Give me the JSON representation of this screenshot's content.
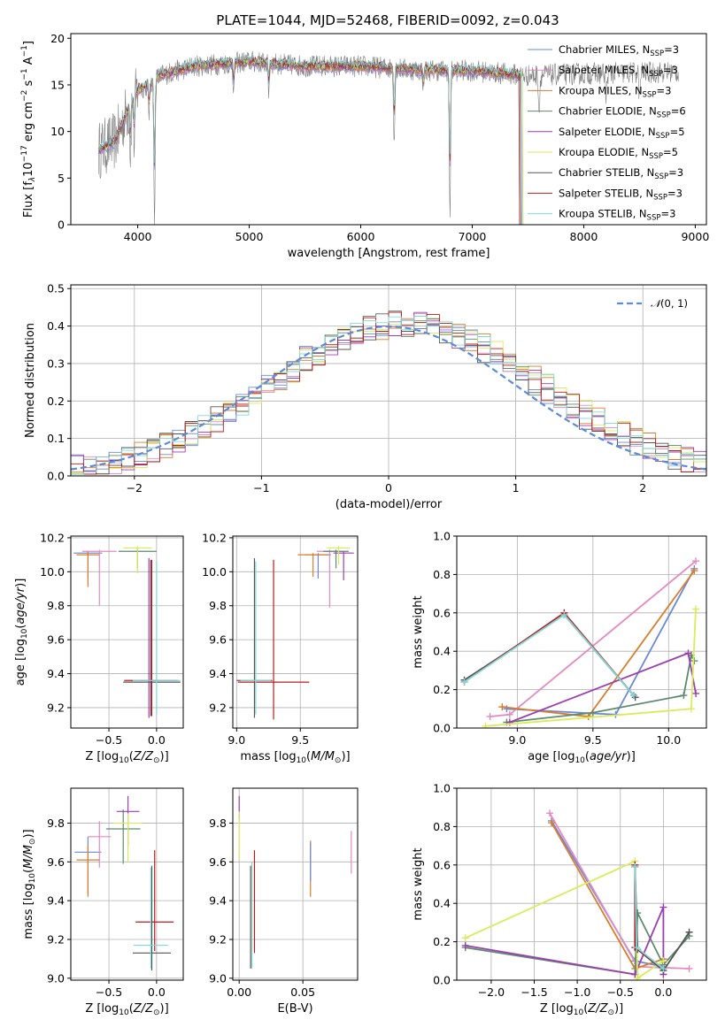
{
  "figure": {
    "title": "PLATE=1044, MJD=52468, FIBERID=0092, z=0.043"
  },
  "models": [
    {
      "label": "Chabrier MILES, N",
      "nssp": "=3",
      "color": "#6a89d8"
    },
    {
      "label": "Salpeter MILES, N",
      "nssp": "=3",
      "color": "#e58ac1"
    },
    {
      "label": "Kroupa MILES, N",
      "nssp": "=3",
      "color": "#d97e2c"
    },
    {
      "label": "Chabrier ELODIE, N",
      "nssp": "=6",
      "color": "#5e8a6e"
    },
    {
      "label": "Salpeter ELODIE, N",
      "nssp": "=5",
      "color": "#9b3fb0"
    },
    {
      "label": "Kroupa ELODIE, N",
      "nssp": "=5",
      "color": "#d8ec5a"
    },
    {
      "label": "Chabrier STELIB, N",
      "nssp": "=3",
      "color": "#555555"
    },
    {
      "label": "Salpeter STELIB, N",
      "nssp": "=3",
      "color": "#b71c1c"
    },
    {
      "label": "Kroupa STELIB, N",
      "nssp": "=3",
      "color": "#7fd9d9"
    }
  ],
  "chart_data": [
    {
      "id": "spectrum",
      "type": "line",
      "xlabel": "wavelength [Angstrom, rest frame]",
      "ylabel": "Flux [f",
      "xlim": [
        3400,
        9100
      ],
      "ylim": [
        0,
        20.5
      ],
      "xticks": [
        4000,
        5000,
        6000,
        7000,
        8000,
        9000
      ],
      "yticks": [
        0,
        5,
        10,
        15,
        20
      ],
      "data_color": "#808080",
      "data_range": [
        3650,
        8850
      ],
      "continuum": [
        [
          3650,
          8
        ],
        [
          3800,
          9
        ],
        [
          3900,
          12
        ],
        [
          4000,
          14.5
        ],
        [
          4100,
          15
        ],
        [
          4200,
          16
        ],
        [
          4500,
          17
        ],
        [
          5000,
          17.5
        ],
        [
          5500,
          17
        ],
        [
          6000,
          17
        ],
        [
          6500,
          16.6
        ],
        [
          7000,
          16.5
        ],
        [
          7500,
          16
        ],
        [
          8000,
          16.2
        ],
        [
          8500,
          16.3
        ],
        [
          8850,
          16.4
        ]
      ],
      "model_cutoffs": [
        7420,
        7430,
        7420,
        7450,
        7440,
        7450,
        7430,
        7420,
        7440
      ],
      "absorption": [
        [
          3934,
          5
        ],
        [
          3969,
          5
        ],
        [
          4102,
          3
        ],
        [
          4150,
          16
        ],
        [
          4861,
          3
        ],
        [
          5175,
          3
        ],
        [
          6300,
          8
        ],
        [
          6563,
          2
        ],
        [
          6800,
          16
        ],
        [
          7600,
          4
        ],
        [
          8200,
          3
        ],
        [
          8500,
          3
        ]
      ]
    },
    {
      "id": "residuals",
      "type": "line",
      "xlabel": "(data-model)/error",
      "ylabel": "Normed distribution",
      "xlim": [
        -2.5,
        2.5
      ],
      "ylim": [
        0,
        0.51
      ],
      "xticks": [
        -2,
        -1,
        0,
        1,
        2
      ],
      "yticks": [
        0.0,
        0.1,
        0.2,
        0.3,
        0.4,
        0.5
      ],
      "bin_width": 0.1,
      "legend": {
        "label": "(0, 1)",
        "color": "#5b8bd9",
        "position": "top-right"
      }
    },
    {
      "id": "age-vs-Z",
      "type": "scatter",
      "xlabel": "Z [log",
      "ylabel": "age  [log",
      "xlim": [
        -0.9,
        0.28
      ],
      "ylim": [
        9.08,
        10.21
      ],
      "xticks": [
        -0.5,
        0.0
      ],
      "yticks": [
        9.2,
        9.4,
        9.6,
        9.8,
        10.0,
        10.2
      ],
      "points": [
        {
          "x": -0.72,
          "y": 10.11,
          "xerr": 0.15,
          "yerr_lo": 0.15,
          "yerr_hi": 0.01,
          "c": 0
        },
        {
          "x": -0.6,
          "y": 10.12,
          "xerr": 0.18,
          "yerr_lo": 0.32,
          "yerr_hi": 0.01,
          "c": 1
        },
        {
          "x": -0.72,
          "y": 10.1,
          "xerr": 0.12,
          "yerr_lo": 0.19,
          "yerr_hi": 0.02,
          "c": 2
        },
        {
          "x": -0.2,
          "y": 10.12,
          "xerr": 0.2,
          "yerr_lo": 0.1,
          "yerr_hi": 0.02,
          "c": 3
        },
        {
          "x": -0.2,
          "y": 10.14,
          "xerr": 0.15,
          "yerr_lo": 0.15,
          "yerr_hi": 0.01,
          "c": 5
        },
        {
          "x": -0.08,
          "y": 9.36,
          "xerr": 0.1,
          "yerr_lo": 0.22,
          "yerr_hi": 0.72,
          "c": 4
        },
        {
          "x": -0.05,
          "y": 9.35,
          "xerr": 0.3,
          "yerr_lo": 0.2,
          "yerr_hi": 0.72,
          "c": 6
        },
        {
          "x": -0.06,
          "y": 9.36,
          "xerr": 0.28,
          "yerr_lo": 0.21,
          "yerr_hi": 0.71,
          "c": 7
        },
        {
          "x": 0.0,
          "y": 9.36,
          "xerr": 0.25,
          "yerr_lo": 0.2,
          "yerr_hi": 0.7,
          "c": 8
        }
      ]
    },
    {
      "id": "age-vs-mass",
      "type": "scatter",
      "xlabel": "mass [log",
      "ylabel": "",
      "xlim": [
        8.97,
        9.95
      ],
      "ylim": [
        9.08,
        10.21
      ],
      "xticks": [
        9.0,
        9.5
      ],
      "yticks": [
        9.2,
        9.4,
        9.6,
        9.8,
        10.0,
        10.2
      ],
      "points": [
        {
          "x": 9.64,
          "y": 10.1,
          "xerr": 0.1,
          "yerr_lo": 0.14,
          "yerr_hi": 0.01,
          "c": 0
        },
        {
          "x": 9.73,
          "y": 10.12,
          "xerr": 0.1,
          "yerr_lo": 0.33,
          "yerr_hi": 0.01,
          "c": 1
        },
        {
          "x": 9.6,
          "y": 10.1,
          "xerr": 0.12,
          "yerr_lo": 0.13,
          "yerr_hi": 0.01,
          "c": 2
        },
        {
          "x": 9.78,
          "y": 10.12,
          "xerr": 0.1,
          "yerr_lo": 0.1,
          "yerr_hi": 0.01,
          "c": 3
        },
        {
          "x": 9.84,
          "y": 10.11,
          "xerr": 0.08,
          "yerr_lo": 0.16,
          "yerr_hi": 0.01,
          "c": 4
        },
        {
          "x": 9.8,
          "y": 10.14,
          "xerr": 0.09,
          "yerr_lo": 0.1,
          "yerr_hi": 0.01,
          "c": 5
        },
        {
          "x": 9.14,
          "y": 9.36,
          "xerr": 0.14,
          "yerr_lo": 0.22,
          "yerr_hi": 0.72,
          "c": 6
        },
        {
          "x": 9.29,
          "y": 9.35,
          "xerr": 0.28,
          "yerr_lo": 0.22,
          "yerr_hi": 0.72,
          "c": 7
        },
        {
          "x": 9.15,
          "y": 9.36,
          "xerr": 0.12,
          "yerr_lo": 0.2,
          "yerr_hi": 0.7,
          "c": 8
        }
      ]
    },
    {
      "id": "weight-vs-age",
      "type": "line",
      "xlabel": "age  [log",
      "ylabel": "mass weight",
      "xlim": [
        8.6,
        10.25
      ],
      "ylim": [
        0,
        1.0
      ],
      "xticks": [
        9.0,
        9.5,
        10.0
      ],
      "yticks": [
        0.0,
        0.2,
        0.4,
        0.6,
        0.8,
        1.0
      ],
      "series": [
        {
          "c": 0,
          "x": [
            8.93,
            9.65,
            10.17
          ],
          "y": [
            0.1,
            0.07,
            0.83
          ]
        },
        {
          "c": 1,
          "x": [
            8.82,
            8.95,
            10.18
          ],
          "y": [
            0.06,
            0.07,
            0.87
          ]
        },
        {
          "c": 2,
          "x": [
            8.9,
            9.47,
            10.17
          ],
          "y": [
            0.11,
            0.06,
            0.82
          ]
        },
        {
          "c": 3,
          "x": [
            8.93,
            9.5,
            10.1,
            10.15,
            10.17
          ],
          "y": [
            0.03,
            0.08,
            0.17,
            0.38,
            0.35
          ]
        },
        {
          "c": 4,
          "x": [
            8.95,
            10.13,
            10.18
          ],
          "y": [
            0.03,
            0.39,
            0.18
          ]
        },
        {
          "c": 5,
          "x": [
            8.79,
            10.15,
            10.18
          ],
          "y": [
            0.01,
            0.1,
            0.62
          ]
        },
        {
          "c": 6,
          "x": [
            8.65,
            9.31,
            9.78
          ],
          "y": [
            0.25,
            0.59,
            0.16
          ]
        },
        {
          "c": 7,
          "x": [
            8.65,
            9.31,
            9.77
          ],
          "y": [
            0.24,
            0.6,
            0.17
          ]
        },
        {
          "c": 8,
          "x": [
            8.65,
            9.31,
            9.77
          ],
          "y": [
            0.24,
            0.59,
            0.17
          ]
        }
      ]
    },
    {
      "id": "mass-vs-Z",
      "type": "scatter",
      "xlabel": "Z [log",
      "ylabel": "mass [log",
      "xlim": [
        -0.9,
        0.28
      ],
      "ylim": [
        8.99,
        9.98
      ],
      "xticks": [
        -0.5,
        0.0
      ],
      "yticks": [
        9.0,
        9.2,
        9.4,
        9.6,
        9.8
      ],
      "points": [
        {
          "x": -0.72,
          "y": 9.65,
          "xerr": 0.14,
          "yerr_lo": 0.21,
          "yerr_hi": 0.08,
          "c": 0
        },
        {
          "x": -0.6,
          "y": 9.73,
          "xerr": 0.12,
          "yerr_lo": 0.16,
          "yerr_hi": 0.08,
          "c": 1
        },
        {
          "x": -0.72,
          "y": 9.61,
          "xerr": 0.12,
          "yerr_lo": 0.19,
          "yerr_hi": 0.08,
          "c": 2
        },
        {
          "x": -0.35,
          "y": 9.77,
          "xerr": 0.18,
          "yerr_lo": 0.18,
          "yerr_hi": 0.1,
          "c": 3
        },
        {
          "x": -0.3,
          "y": 9.86,
          "xerr": 0.12,
          "yerr_lo": 0.18,
          "yerr_hi": 0.08,
          "c": 4
        },
        {
          "x": -0.3,
          "y": 9.8,
          "xerr": 0.15,
          "yerr_lo": 0.2,
          "yerr_hi": 0.05,
          "c": 5
        },
        {
          "x": -0.05,
          "y": 9.13,
          "xerr": 0.2,
          "yerr_lo": 0.09,
          "yerr_hi": 0.45,
          "c": 6
        },
        {
          "x": -0.02,
          "y": 9.29,
          "xerr": 0.2,
          "yerr_lo": 0.15,
          "yerr_hi": 0.37,
          "c": 7
        },
        {
          "x": -0.06,
          "y": 9.17,
          "xerr": 0.18,
          "yerr_lo": 0.12,
          "yerr_hi": 0.4,
          "c": 8
        }
      ]
    },
    {
      "id": "mass-vs-EBV",
      "type": "scatter",
      "xlabel": "E(B-V)",
      "ylabel": "",
      "xlim": [
        -0.005,
        0.093
      ],
      "ylim": [
        8.99,
        9.98
      ],
      "xticks": [
        0.0,
        0.05
      ],
      "yticks": [
        9.0,
        9.2,
        9.4,
        9.6,
        9.8
      ],
      "points": [
        {
          "x": 0.0,
          "y": 9.88,
          "yerr_lo": 0.06,
          "yerr_hi": 0.06,
          "c": 4
        },
        {
          "x": 0.0,
          "y": 9.76,
          "yerr_lo": 0.15,
          "yerr_hi": 0.1,
          "c": 5
        },
        {
          "x": 0.009,
          "y": 9.2,
          "yerr_lo": 0.15,
          "yerr_hi": 0.38,
          "c": 6
        },
        {
          "x": 0.012,
          "y": 9.35,
          "yerr_lo": 0.22,
          "yerr_hi": 0.31,
          "c": 7
        },
        {
          "x": 0.01,
          "y": 9.3,
          "yerr_lo": 0.25,
          "yerr_hi": 0.3,
          "c": 8
        },
        {
          "x": 0.056,
          "y": 9.55,
          "yerr_lo": 0.13,
          "yerr_hi": 0.16,
          "c": 2
        },
        {
          "x": 0.056,
          "y": 9.6,
          "yerr_lo": 0.1,
          "yerr_hi": 0.1,
          "c": 0
        },
        {
          "x": 0.088,
          "y": 9.64,
          "yerr_lo": 0.1,
          "yerr_hi": 0.12,
          "c": 1
        }
      ]
    },
    {
      "id": "weight-vs-Z",
      "type": "line",
      "xlabel": "Z [log",
      "ylabel": "mass weight",
      "xlim": [
        -2.4,
        0.5
      ],
      "ylim": [
        0,
        1.0
      ],
      "xticks": [
        -2.0,
        -1.5,
        -1.0,
        -0.5,
        0.0
      ],
      "yticks": [
        0.0,
        0.2,
        0.4,
        0.6,
        0.8,
        1.0
      ],
      "series": [
        {
          "c": 0,
          "x": [
            -1.3,
            -0.33,
            0.0
          ],
          "y": [
            0.83,
            0.1,
            0.07
          ]
        },
        {
          "c": 1,
          "x": [
            -1.32,
            -0.3,
            0.3
          ],
          "y": [
            0.87,
            0.07,
            0.06
          ]
        },
        {
          "c": 2,
          "x": [
            -1.3,
            -0.33,
            0.0
          ],
          "y": [
            0.82,
            0.06,
            0.11
          ]
        },
        {
          "c": 3,
          "x": [
            -2.3,
            -0.33,
            -0.3,
            0.0,
            0.3
          ],
          "y": [
            0.17,
            0.03,
            0.35,
            0.08,
            0.23
          ]
        },
        {
          "c": 4,
          "x": [
            -2.3,
            -0.33,
            0.0,
            0.0
          ],
          "y": [
            0.18,
            0.03,
            0.38,
            0.03
          ]
        },
        {
          "c": 5,
          "x": [
            -2.3,
            -0.33,
            -0.3,
            0.0
          ],
          "y": [
            0.22,
            0.62,
            0.01,
            0.1
          ]
        },
        {
          "c": 6,
          "x": [
            -0.33,
            -0.3,
            0.0,
            0.3
          ],
          "y": [
            0.59,
            0.16,
            0.05,
            0.25
          ]
        },
        {
          "c": 7,
          "x": [
            -0.33,
            -0.33,
            0.0
          ],
          "y": [
            0.6,
            0.17,
            0.06
          ]
        },
        {
          "c": 8,
          "x": [
            -0.33,
            -0.31,
            0.0
          ],
          "y": [
            0.59,
            0.17,
            0.06
          ]
        }
      ]
    }
  ]
}
